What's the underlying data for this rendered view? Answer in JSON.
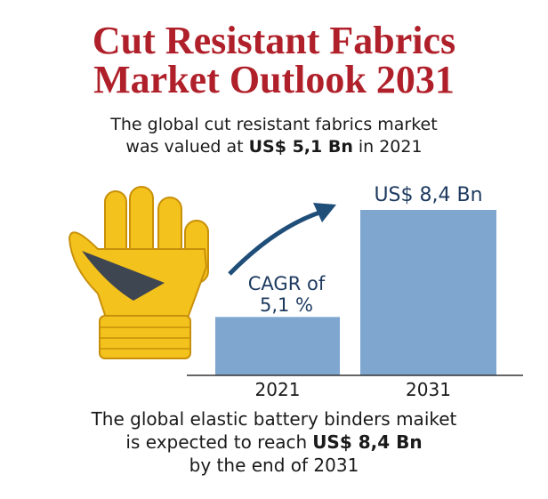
{
  "chart_data": {
    "type": "bar",
    "title": "Cut Resistant Fabrics Market Outlook 2031",
    "subtitle": {
      "line1": "The global cut resistant fabrics market",
      "line2": "was valued at",
      "bold": "US$ 5,1 Bn",
      "line3": "in 2021"
    },
    "categories": [
      "2021",
      "2031"
    ],
    "values": [
      5.1,
      8.4
    ],
    "value_labels": [
      null,
      "US$ 8,4 Bn"
    ],
    "color": "#7fa6cf",
    "ylim": [
      3.3,
      8.4
    ],
    "annotations": [
      "CAGR of",
      "5,1 %"
    ],
    "footer": {
      "line1": "The global elastic battery binders maiket",
      "line2": "is expected to reach",
      "bold": "US$ 8,4 Bn",
      "line3": "by the end of 2031"
    }
  }
}
